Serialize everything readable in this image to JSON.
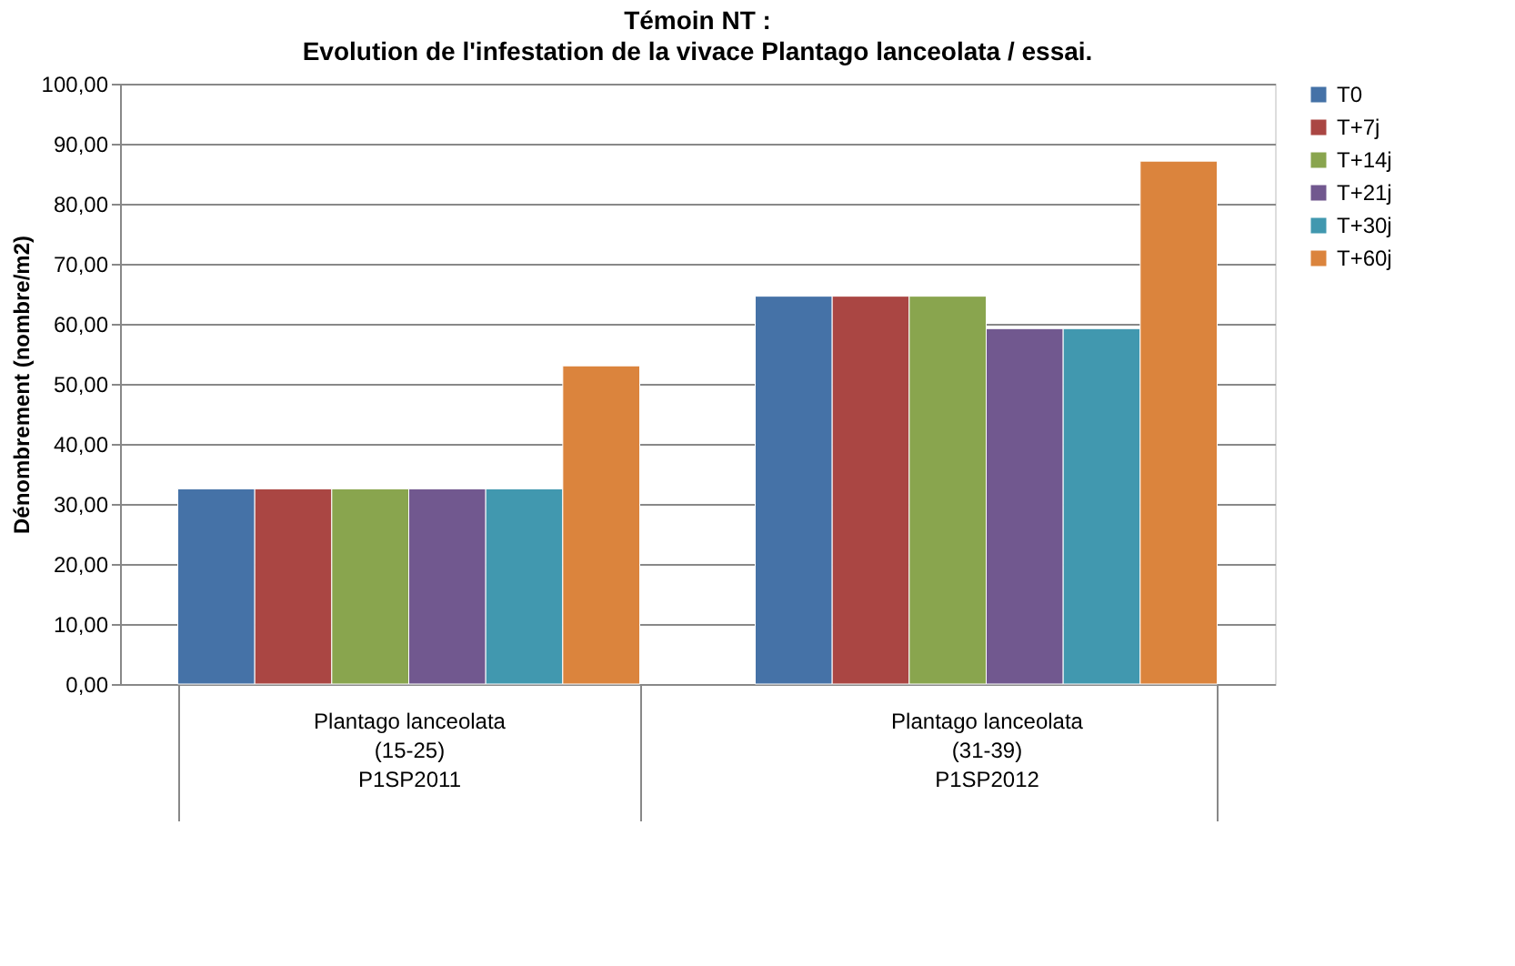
{
  "chart_data": {
    "type": "bar",
    "title": "Témoin NT :",
    "subtitle": "Evolution de l'infestation de la vivace Plantago lanceolata / essai.",
    "ylabel": "Dénombrement (nombre/m2)",
    "categories": [
      "Plantago lanceolata\n(15-25)\n\nP1SP2011",
      "Plantago lanceolata\n(31-39)\n\nP1SP2012"
    ],
    "series": [
      {
        "name": "T0",
        "color": "#4572a7",
        "values": [
          32.5,
          64.6
        ]
      },
      {
        "name": "T+7j",
        "color": "#aa4643",
        "values": [
          32.5,
          64.6
        ]
      },
      {
        "name": "T+14j",
        "color": "#89a54e",
        "values": [
          32.5,
          64.6
        ]
      },
      {
        "name": "T+21j",
        "color": "#71588f",
        "values": [
          32.5,
          59.2
        ]
      },
      {
        "name": "T+30j",
        "color": "#4198af",
        "values": [
          32.5,
          59.2
        ]
      },
      {
        "name": "T+60j",
        "color": "#db843d",
        "values": [
          53.0,
          87.1
        ]
      }
    ],
    "ylim": [
      0,
      100
    ],
    "yticks": [
      {
        "value": 0,
        "label": "0,00"
      },
      {
        "value": 10,
        "label": "10,00"
      },
      {
        "value": 20,
        "label": "20,00"
      },
      {
        "value": 30,
        "label": "30,00"
      },
      {
        "value": 40,
        "label": "40,00"
      },
      {
        "value": 50,
        "label": "50,00"
      },
      {
        "value": 60,
        "label": "60,00"
      },
      {
        "value": 70,
        "label": "70,00"
      },
      {
        "value": 80,
        "label": "80,00"
      },
      {
        "value": 90,
        "label": "90,00"
      },
      {
        "value": 100,
        "label": "100,00"
      }
    ],
    "grid": "y",
    "legend": "right"
  }
}
